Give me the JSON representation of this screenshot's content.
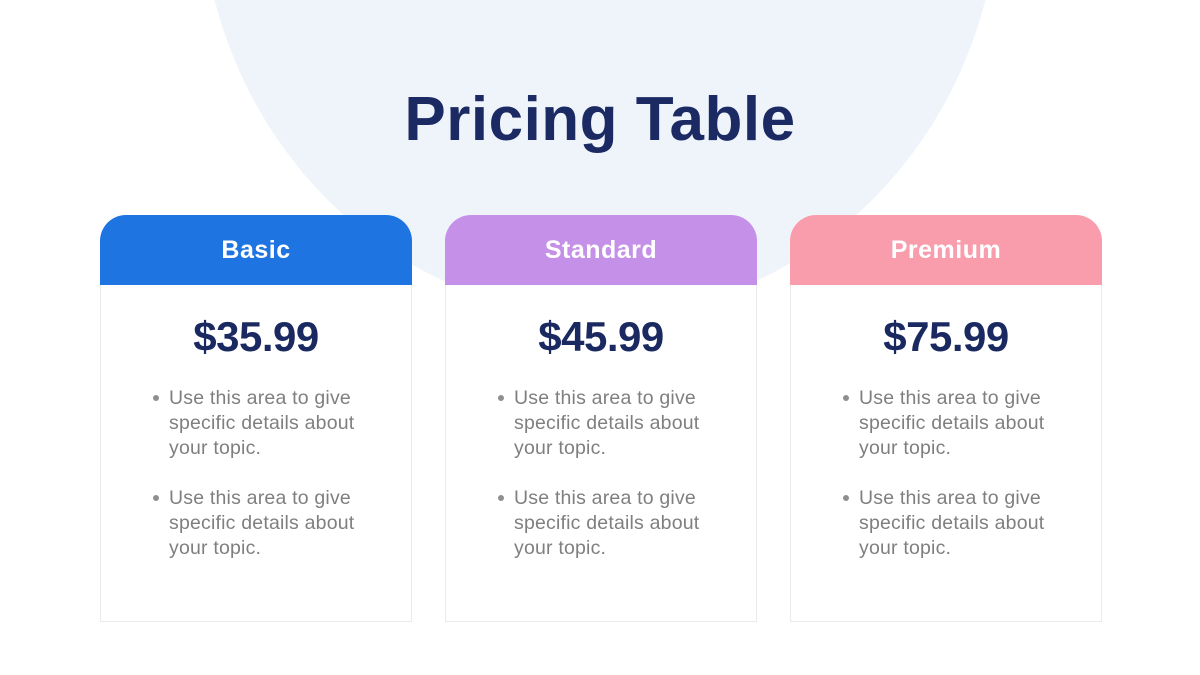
{
  "slide": {
    "title": "Pricing Table"
  },
  "colors": {
    "title_navy": "#1b2a63",
    "price_navy": "#1a295f",
    "body_gray": "#7f7f7f",
    "blob_light_blue": "#eff4fb",
    "card_border": "#ebe9eb",
    "basic_blue": "#1e75e1",
    "standard_purple": "#c591e8",
    "premium_pink": "#f99dad"
  },
  "cards": [
    {
      "plan": "Basic",
      "price": "$35.99",
      "header_color": "#1e75e1",
      "features": [
        "Use this area to give specific details about your topic.",
        "Use this area to give specific details about your topic."
      ]
    },
    {
      "plan": "Standard",
      "price": "$45.99",
      "header_color": "#c591e8",
      "features": [
        "Use this area to give specific details about your topic.",
        "Use this area to give specific details about your topic."
      ]
    },
    {
      "plan": "Premium",
      "price": "$75.99",
      "header_color": "#f99dad",
      "features": [
        "Use this area to give specific details about your topic.",
        "Use this area to give specific details about your topic."
      ]
    }
  ]
}
